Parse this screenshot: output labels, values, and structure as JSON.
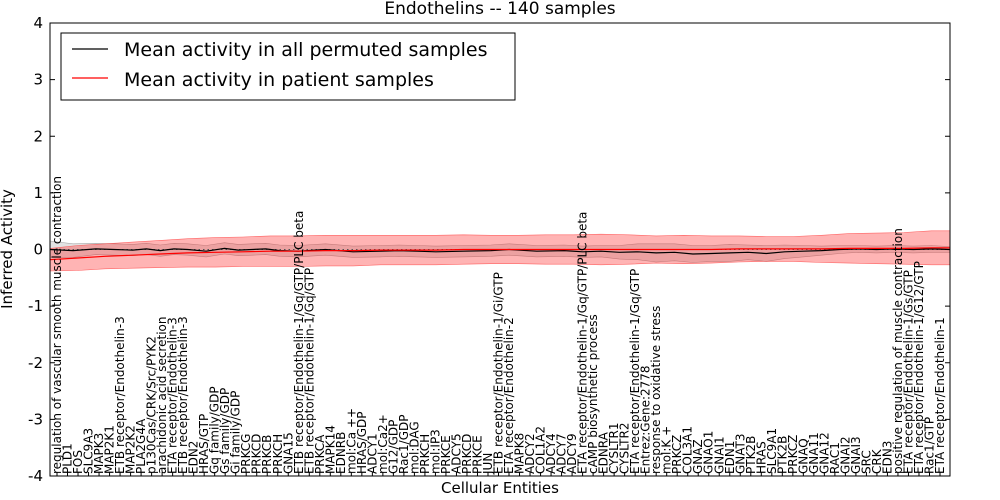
{
  "chart_data": {
    "type": "line",
    "title": "Endothelins -- 140 samples",
    "xlabel": "Cellular Entities",
    "ylabel": "Inferred Activity",
    "ylim": [
      -4,
      4
    ],
    "yticks": [
      -4,
      -3,
      -2,
      -1,
      0,
      1,
      2,
      3,
      4
    ],
    "xlim": [
      0,
      98
    ],
    "grid": false,
    "legend_position": "top-left",
    "reference_line": {
      "y": 0,
      "style": "dotted"
    },
    "categories": [
      "regulation of vascular smooth muscle contraction",
      "PLD1",
      "FOS",
      "SLC9A3",
      "MAPK3",
      "MAP2K1",
      "ETB receptor/Endothelin-3",
      "MAP2K2",
      "PLA2G4A",
      "p130Cas/CRK/Src/PYK2",
      "arachidonic acid secretion",
      "ETA receptor/Endothelin-3",
      "ETB receptor/Endothelin-3",
      "EDN2",
      "HRAS/GTP",
      "Gq family/GDP",
      "Gs family/GDP",
      "Gi family/GDP",
      "PRKCG",
      "PRKCD",
      "PRKCB",
      "PRKCH",
      "GNA15",
      "ETB receptor/Endothelin-1/Gq/GTP/PLC beta",
      "ETB receptor/Endothelin-1/Gq/GTP",
      "PRKCA",
      "MAPK14",
      "EDNRB",
      "mol:Ca ++",
      "HRAS/GDP",
      "ADCY1",
      "mol:Ca2+",
      "G12/GDP",
      "Rac1/GDP",
      "mol:DAG",
      "PRKCH",
      "mol:IP3",
      "PRKCE",
      "ADCY5",
      "PRKCD",
      "PRKCE",
      "JUN",
      "ETB receptor/Endothelin-1/Gi/GTP",
      "ETA receptor/Endothelin-2",
      "MAPK8",
      "ADCY2",
      "COL1A2",
      "ADCY4",
      "ADCY7",
      "ADCY9",
      "ETA receptor/Endothelin-1/Gq/GTP/PLC beta",
      "cAMP biosynthetic process",
      "EDNRA",
      "CYSLTR1",
      "CYSLTR2",
      "ETA receptor/Endothelin-1/Gq/GTP",
      "Entrez:Gene:2778",
      "response to oxidative stress",
      "mol:K +",
      "PRKCZ",
      "COL3A1",
      "GNAZ",
      "GNAO1",
      "GNAI1",
      "EDN1",
      "GNAT3",
      "PTK2B",
      "HRAS",
      "SLC9A1",
      "PTK2B",
      "PRKCZ",
      "GNAQ",
      "GNA11",
      "GNA12",
      "RAC1",
      "GNAI2",
      "GNAI3",
      "SRC",
      "CRK",
      "EDN3",
      "positive regulation of muscle contraction",
      "ETA receptor/Endothelin-1/Gs/GTP",
      "ETA receptor/Endothelin-1/G12/GTP",
      "Rac1/GTP",
      "ETA receptor/Endothelin-1"
    ],
    "series": [
      {
        "name": "Mean activity in all permuted samples",
        "color": "#000000",
        "x": [
          0,
          2.5,
          5,
          7,
          9,
          10.5,
          12,
          13.5,
          15,
          17,
          19,
          20.5,
          22,
          23.5,
          25,
          27,
          30,
          33,
          36,
          38,
          40,
          42,
          45,
          48,
          50,
          53,
          56,
          58,
          60,
          62,
          64,
          66,
          68,
          70,
          72,
          74,
          76,
          78,
          80,
          82,
          84,
          86,
          88,
          90,
          92,
          94,
          96,
          98
        ],
        "values": [
          0.0,
          -0.02,
          0.01,
          0.0,
          -0.01,
          0.01,
          -0.02,
          0.01,
          0.0,
          -0.03,
          0.02,
          -0.01,
          0.0,
          0.01,
          -0.02,
          -0.03,
          0.0,
          -0.04,
          -0.03,
          -0.02,
          -0.03,
          -0.04,
          -0.03,
          -0.02,
          0.0,
          -0.03,
          -0.02,
          -0.04,
          -0.03,
          -0.05,
          -0.04,
          -0.06,
          -0.05,
          -0.08,
          -0.07,
          -0.06,
          -0.05,
          -0.07,
          -0.04,
          -0.03,
          -0.02,
          0.0,
          0.01,
          0.0,
          0.01,
          0.0,
          0.01,
          0.0
        ],
        "band": [
          0.15,
          0.12,
          0.1,
          0.1,
          0.1,
          0.1,
          0.1,
          0.1,
          0.1,
          0.1,
          0.1,
          0.1,
          0.1,
          0.1,
          0.1,
          0.1,
          0.1,
          0.1,
          0.1,
          0.1,
          0.1,
          0.1,
          0.1,
          0.1,
          0.1,
          0.1,
          0.1,
          0.1,
          0.1,
          0.12,
          0.14,
          0.16,
          0.15,
          0.15,
          0.14,
          0.15,
          0.13,
          0.14,
          0.12,
          0.1,
          0.08,
          0.07,
          0.06,
          0.06,
          0.06,
          0.06,
          0.06,
          0.05
        ]
      },
      {
        "name": "Mean activity in patient samples",
        "color": "#ff0000",
        "x": [
          0,
          3,
          6,
          9,
          12,
          15,
          18,
          21,
          24,
          27,
          30,
          33,
          36,
          39,
          42,
          45,
          48,
          51,
          54,
          57,
          60,
          63,
          66,
          69,
          72,
          75,
          78,
          81,
          84,
          87,
          90,
          93,
          96,
          98
        ],
        "values": [
          -0.18,
          -0.15,
          -0.12,
          -0.1,
          -0.08,
          -0.06,
          -0.05,
          -0.04,
          -0.03,
          -0.03,
          -0.02,
          -0.02,
          -0.01,
          -0.01,
          -0.01,
          0.0,
          0.0,
          0.0,
          0.0,
          0.0,
          0.0,
          0.0,
          0.0,
          0.0,
          0.0,
          0.01,
          0.01,
          0.01,
          0.01,
          0.02,
          0.02,
          0.02,
          0.03,
          0.03
        ],
        "band": [
          0.2,
          0.22,
          0.22,
          0.23,
          0.24,
          0.25,
          0.26,
          0.26,
          0.27,
          0.27,
          0.27,
          0.27,
          0.26,
          0.26,
          0.26,
          0.26,
          0.25,
          0.25,
          0.26,
          0.26,
          0.27,
          0.26,
          0.24,
          0.25,
          0.24,
          0.23,
          0.22,
          0.22,
          0.24,
          0.26,
          0.27,
          0.28,
          0.3,
          0.3
        ]
      }
    ]
  }
}
